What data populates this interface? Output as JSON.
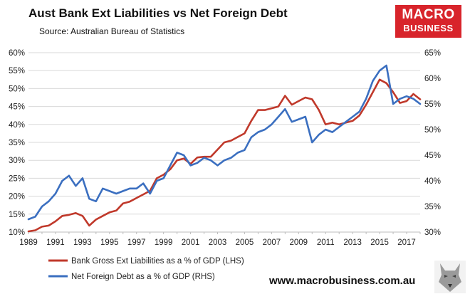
{
  "header": {
    "title": "Aust Bank Ext Liabilities vs Net Foreign Debt",
    "source": "Source:  Australian Bureau of Statistics"
  },
  "logo": {
    "line1": "MACRO",
    "line2": "BUSINESS"
  },
  "footer": {
    "website": "www.macrobusiness.com.au"
  },
  "colors": {
    "lhs_series": "#c0392b",
    "rhs_series": "#3b6fc0",
    "logo_bg": "#d8242b"
  },
  "chart_data": {
    "type": "line",
    "title": "Aust Bank Ext Liabilities vs Net Foreign Debt",
    "x_range": [
      1989,
      2018
    ],
    "x_ticks": [
      1989,
      1991,
      1993,
      1995,
      1997,
      1999,
      2001,
      2003,
      2005,
      2007,
      2009,
      2011,
      2013,
      2015,
      2017
    ],
    "left_axis": {
      "range": [
        10,
        60
      ],
      "ticks": [
        "10%",
        "15%",
        "20%",
        "25%",
        "30%",
        "35%",
        "40%",
        "45%",
        "50%",
        "55%",
        "60%"
      ]
    },
    "right_axis": {
      "range": [
        30,
        65
      ],
      "ticks": [
        "30%",
        "35%",
        "40%",
        "45%",
        "50%",
        "55%",
        "60%",
        "65%"
      ]
    },
    "grid": "horizontal",
    "legend": "bottom-left",
    "series": [
      {
        "name": "Bank Gross Ext Liabilities as a % of GDP (LHS)",
        "axis": "left",
        "x": [
          1989.0,
          1989.5,
          1990.0,
          1990.5,
          1991.0,
          1991.5,
          1992.0,
          1992.5,
          1993.0,
          1993.5,
          1994.0,
          1994.5,
          1995.0,
          1995.5,
          1996.0,
          1996.5,
          1997.0,
          1997.5,
          1998.0,
          1998.5,
          1999.0,
          1999.5,
          2000.0,
          2000.5,
          2001.0,
          2001.5,
          2002.0,
          2002.5,
          2003.0,
          2003.5,
          2004.0,
          2004.5,
          2005.0,
          2005.5,
          2006.0,
          2006.5,
          2007.0,
          2007.5,
          2008.0,
          2008.5,
          2009.0,
          2009.5,
          2010.0,
          2010.5,
          2011.0,
          2011.5,
          2012.0,
          2012.5,
          2013.0,
          2013.5,
          2014.0,
          2014.5,
          2015.0,
          2015.5,
          2016.0,
          2016.5,
          2017.0,
          2017.5,
          2018.0
        ],
        "values": [
          10.2,
          10.5,
          11.5,
          11.8,
          13.0,
          14.5,
          14.8,
          15.3,
          14.5,
          11.8,
          13.5,
          14.5,
          15.5,
          16.0,
          18.0,
          18.5,
          19.5,
          20.5,
          21.5,
          25.0,
          26.0,
          27.5,
          30.0,
          30.5,
          29.0,
          30.8,
          31.0,
          31.0,
          33.0,
          35.0,
          35.5,
          36.5,
          37.5,
          41.0,
          44.0,
          44.0,
          44.5,
          45.0,
          48.0,
          45.5,
          46.5,
          47.5,
          47.0,
          44.0,
          40.0,
          40.5,
          40.0,
          40.5,
          41.0,
          42.5,
          45.5,
          49.0,
          52.5,
          51.5,
          49.0,
          46.0,
          46.5,
          48.5,
          47.0
        ]
      },
      {
        "name": "Net Foreign Debt as a % of GDP (RHS)",
        "axis": "right",
        "x": [
          1989.0,
          1989.5,
          1990.0,
          1990.5,
          1991.0,
          1991.5,
          1992.0,
          1992.5,
          1993.0,
          1993.5,
          1994.0,
          1994.5,
          1995.0,
          1995.5,
          1996.0,
          1996.5,
          1997.0,
          1997.5,
          1998.0,
          1998.5,
          1999.0,
          1999.5,
          2000.0,
          2000.5,
          2001.0,
          2001.5,
          2002.0,
          2002.5,
          2003.0,
          2003.5,
          2004.0,
          2004.5,
          2005.0,
          2005.5,
          2006.0,
          2006.5,
          2007.0,
          2007.5,
          2008.0,
          2008.5,
          2009.0,
          2009.5,
          2010.0,
          2010.5,
          2011.0,
          2011.5,
          2012.0,
          2012.5,
          2013.0,
          2013.5,
          2014.0,
          2014.5,
          2015.0,
          2015.5,
          2016.0,
          2016.5,
          2017.0,
          2017.5,
          2018.0
        ],
        "values": [
          32.5,
          33.0,
          35.0,
          36.0,
          37.5,
          40.0,
          41.0,
          39.0,
          40.5,
          36.5,
          36.0,
          38.5,
          38.0,
          37.5,
          38.0,
          38.5,
          38.5,
          39.5,
          37.5,
          40.0,
          40.5,
          43.0,
          45.5,
          45.0,
          43.0,
          43.5,
          44.5,
          44.0,
          43.0,
          44.0,
          44.5,
          45.5,
          46.0,
          48.5,
          49.5,
          50.0,
          51.0,
          52.5,
          54.0,
          51.5,
          52.0,
          52.5,
          47.5,
          49.0,
          50.0,
          49.5,
          50.5,
          51.5,
          52.5,
          53.5,
          56.0,
          59.5,
          61.5,
          62.5,
          55.0,
          56.0,
          56.5,
          56.0,
          55.0
        ]
      }
    ]
  }
}
